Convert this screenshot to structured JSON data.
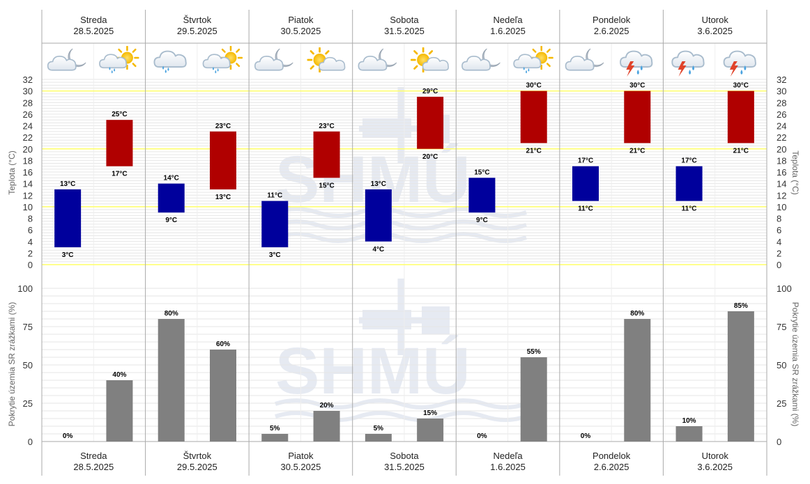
{
  "days": [
    {
      "name": "Streda",
      "date": "28.5.2025"
    },
    {
      "name": "Štvrtok",
      "date": "29.5.2025"
    },
    {
      "name": "Piatok",
      "date": "30.5.2025"
    },
    {
      "name": "Sobota",
      "date": "31.5.2025"
    },
    {
      "name": "Nedeľa",
      "date": "1.6.2025"
    },
    {
      "name": "Pondelok",
      "date": "2.6.2025"
    },
    {
      "name": "Utorok",
      "date": "3.6.2025"
    }
  ],
  "weather_icons": [
    [
      "night-cloud-moon-icon",
      "day-rain-sun-icon"
    ],
    [
      "rain-cloud-icon",
      "day-rain-sun-icon"
    ],
    [
      "night-cloud-moon-icon",
      "day-sun-cloud-icon"
    ],
    [
      "night-cloud-moon-icon",
      "day-sun-cloud-icon"
    ],
    [
      "night-cloud-moon-icon",
      "day-rain-sun-icon"
    ],
    [
      "night-cloud-moon-icon",
      "storm-rain-cloud-icon"
    ],
    [
      "storm-rain-cloud-icon",
      "storm-rain-cloud-icon"
    ]
  ],
  "colors": {
    "night_bar": "#00009c",
    "day_bar": "#b00000",
    "precip_bar": "#808080",
    "highlight_line": "#ffff66",
    "grid": "#e6e6e6",
    "separator": "#aaaaaa"
  },
  "chart_data": [
    {
      "type": "bar",
      "subtype": "floating-range",
      "ylabel_left": "Teplota (°C)",
      "ylabel_right": "Teplota (°C)",
      "ylim": [
        0,
        32
      ],
      "yticks": [
        0,
        2,
        4,
        6,
        8,
        10,
        12,
        14,
        16,
        18,
        20,
        22,
        24,
        26,
        28,
        30,
        32
      ],
      "highlight_lines": [
        0,
        10,
        20,
        30
      ],
      "unit": "°C",
      "categories": [
        "28.5.2025",
        "29.5.2025",
        "30.5.2025",
        "31.5.2025",
        "1.6.2025",
        "2.6.2025",
        "3.6.2025"
      ],
      "series": [
        {
          "key": "night",
          "min": [
            3,
            9,
            3,
            4,
            9,
            11,
            11
          ],
          "max": [
            13,
            14,
            11,
            13,
            15,
            17,
            17
          ]
        },
        {
          "key": "day",
          "min": [
            17,
            13,
            15,
            20,
            21,
            21,
            21
          ],
          "max": [
            25,
            23,
            23,
            29,
            30,
            30,
            30
          ]
        }
      ]
    },
    {
      "type": "bar",
      "ylabel_left": "Pokrytie územia SR zrážkami (%)",
      "ylabel_right": "Pokrytie územia SR zrážkami (%)",
      "ylim": [
        0,
        100
      ],
      "yticks": [
        0,
        25,
        50,
        75,
        100
      ],
      "unit": "%",
      "categories": [
        "28.5.2025",
        "29.5.2025",
        "30.5.2025",
        "31.5.2025",
        "1.6.2025",
        "2.6.2025",
        "3.6.2025"
      ],
      "series": [
        {
          "key": "night",
          "values": [
            0,
            80,
            5,
            5,
            0,
            0,
            10
          ]
        },
        {
          "key": "day",
          "values": [
            40,
            60,
            20,
            15,
            55,
            80,
            85
          ]
        }
      ]
    }
  ]
}
